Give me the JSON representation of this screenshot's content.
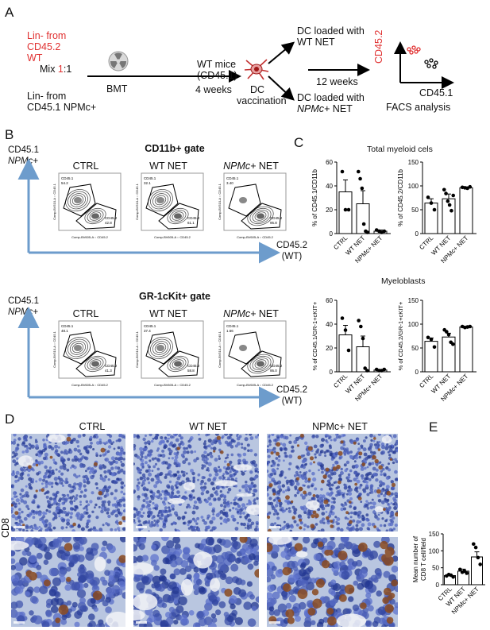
{
  "panel_a": {
    "label": "A",
    "donor1": [
      "Lin- from",
      "CD45.2",
      "WT"
    ],
    "donor2": [
      "Lin- from",
      "CD45.1 NPMc+"
    ],
    "mix_prefix": "Mix ",
    "mix_ratio_red": "1",
    "mix_suffix": ":1",
    "bmt": "BMT",
    "recipient": [
      "WT mice",
      "(CD45.1)"
    ],
    "four_weeks": "4 weeks",
    "dc_vaccination": [
      "DC",
      "vaccination"
    ],
    "dc_wt": [
      "DC loaded with",
      "WT NET"
    ],
    "dc_npm_line1": "DC loaded with",
    "dc_npm_italic": "NPMc+",
    "dc_npm_rest": " NET",
    "twelve_weeks": "12 weeks",
    "facs_y": "CD45.2",
    "facs_x": "CD45.1",
    "facs_analysis": "FACS analysis"
  },
  "panel_b": {
    "label": "B",
    "y_axis": [
      "CD45.1",
      "NPMc+"
    ],
    "x_axis": [
      "CD45.2",
      "(WT)"
    ],
    "gate1_title": "CD11b+ gate",
    "gate2_title": "GR-1cKit+ gate",
    "conditions": [
      "CTRL",
      "WT NET",
      "NET"
    ],
    "npm_italic": "NPMc+",
    "plot_y_label": "Comp-BV510-A :: CD45.1",
    "plot_x_label": "Comp-BV605-A :: CD45.2",
    "gate_top_label": "CD45.1",
    "gate_bottom_label": "CD45.2",
    "gate1_values": [
      [
        "54.2",
        "42.8"
      ],
      [
        "32.1",
        "61.1"
      ],
      [
        "3.40",
        "95.8"
      ]
    ],
    "gate2_values": [
      [
        "48.1",
        "41.3"
      ],
      [
        "37.4",
        "58.8"
      ],
      [
        "1.66",
        "95.0"
      ]
    ]
  },
  "panel_c": {
    "label": "C",
    "top_title": "Total myeloid cels",
    "bottom_title": "Myeloblasts"
  },
  "panel_d": {
    "label": "D",
    "row_label": "CD8",
    "conditions": [
      "CTRL",
      "WT NET",
      "NPMc+ NET"
    ]
  },
  "panel_e": {
    "label": "E"
  },
  "chart_data": [
    {
      "type": "bar",
      "id": "c1",
      "title": "Total myeloid cels",
      "categories": [
        "CTRL",
        "WT NET",
        "NPMc+ NET"
      ],
      "values": [
        35,
        25,
        2
      ],
      "errors": [
        10,
        11,
        1
      ],
      "points": [
        [
          52,
          20,
          20
        ],
        [
          52,
          46,
          38,
          8,
          2,
          1
        ],
        [
          3,
          2,
          1,
          2
        ]
      ],
      "ylabel": "% of CD45.1/CD11b",
      "ylim": [
        0,
        60
      ],
      "yticks": [
        0,
        20,
        40,
        60
      ]
    },
    {
      "type": "bar",
      "id": "c2",
      "title": "Total myeloid cels",
      "categories": [
        "CTRL",
        "WT NET",
        "NPMc+ NET"
      ],
      "values": [
        64,
        73,
        96
      ],
      "errors": [
        9,
        10,
        2
      ],
      "points": [
        [
          76,
          64,
          50
        ],
        [
          92,
          84,
          68,
          60,
          48,
          80
        ],
        [
          97,
          96,
          95,
          98
        ]
      ],
      "ylabel": "% of CD45.2/CD11b",
      "ylim": [
        0,
        150
      ],
      "yticks": [
        0,
        50,
        100,
        150
      ]
    },
    {
      "type": "bar",
      "id": "c3",
      "title": "Myeloblasts",
      "categories": [
        "CTRL",
        "WT NET",
        "NPMc+ NET"
      ],
      "values": [
        31,
        21,
        1.5
      ],
      "errors": [
        8,
        9,
        0.5
      ],
      "points": [
        [
          45,
          35,
          18
        ],
        [
          43,
          38,
          28,
          3,
          1
        ],
        [
          2,
          1,
          1,
          2
        ]
      ],
      "ylabel": "% of CD45.1/GR-1+cKIT+",
      "ylim": [
        0,
        60
      ],
      "yticks": [
        0,
        20,
        40,
        60
      ]
    },
    {
      "type": "bar",
      "id": "c4",
      "title": "Myeloblasts",
      "categories": [
        "CTRL",
        "WT NET",
        "NPMc+ NET"
      ],
      "values": [
        64,
        73,
        94
      ],
      "errors": [
        7,
        8,
        1
      ],
      "points": [
        [
          72,
          68,
          52
        ],
        [
          88,
          84,
          78,
          62,
          58
        ],
        [
          95,
          93,
          94,
          95
        ]
      ],
      "ylabel": "% of CD45.2/GR-1+cKIT+",
      "ylim": [
        0,
        150
      ],
      "yticks": [
        0,
        50,
        100,
        150
      ]
    },
    {
      "type": "bar",
      "id": "e",
      "categories": [
        "CTRL",
        "WT NET",
        "NPMc+ NET"
      ],
      "values": [
        27,
        40,
        82
      ],
      "errors": [
        3,
        6,
        15
      ],
      "points": [
        [
          26,
          30,
          28,
          23
        ],
        [
          45,
          37,
          40,
          34
        ],
        [
          120,
          110,
          80,
          60
        ]
      ],
      "ylabel": "Mean number of CD8 T cell/field",
      "ylim": [
        0,
        150
      ],
      "yticks": [
        0,
        50,
        100,
        150
      ]
    }
  ]
}
